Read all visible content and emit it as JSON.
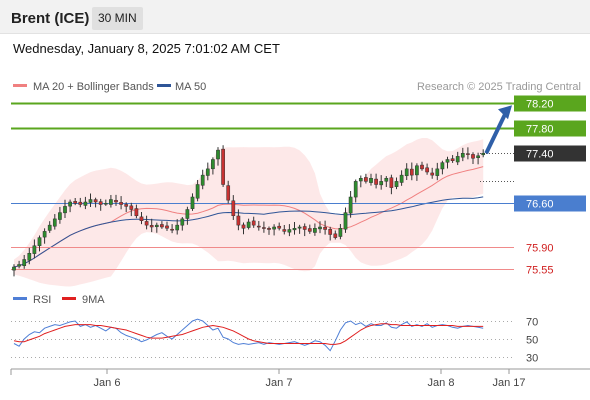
{
  "header": {
    "instrument": "Brent (ICE)",
    "timeframe": "30 MIN",
    "datetime": "Wednesday, January 8, 2025 7:01:02 AM CET"
  },
  "legend_main": [
    {
      "label": "MA 20 + Bollinger Bands",
      "color": "#f08080"
    },
    {
      "label": "MA 50",
      "color": "#2f5597"
    }
  ],
  "legend_rsi": [
    {
      "label": "RSI",
      "color": "#4f7fd6"
    },
    {
      "label": "9MA",
      "color": "#e02020"
    }
  ],
  "credit": "Research © 2025 Trading Central",
  "colors": {
    "up": "#2e8b2e",
    "down": "#c83232",
    "resistance": "#5aa61e",
    "support_blue": "#4a7ecf",
    "support_red": "#f08a8a",
    "last_price_bg": "#333333",
    "arrow": "#2f5fa8",
    "bollinger_fill": "#fde4e4"
  },
  "chart_data": [
    {
      "type": "candlestick",
      "x_ticks": [
        "Jan 6",
        "Jan 7",
        "Jan 8",
        "Jan 17"
      ],
      "levels": [
        {
          "value": 78.2,
          "label": "78.20",
          "kind": "resistance"
        },
        {
          "value": 77.8,
          "label": "77.80",
          "kind": "resistance"
        },
        {
          "value": 77.4,
          "label": "77.40",
          "kind": "last"
        },
        {
          "value": 76.6,
          "label": "76.60",
          "kind": "pivot"
        },
        {
          "value": 75.9,
          "label": "75.90",
          "kind": "support"
        },
        {
          "value": 75.55,
          "label": "75.55",
          "kind": "support"
        }
      ],
      "ylim": [
        75.5,
        78.3
      ],
      "projection": {
        "from": 77.4,
        "to": 78.2
      },
      "close": [
        75.58,
        75.62,
        75.7,
        75.8,
        75.92,
        76.05,
        76.15,
        76.25,
        76.35,
        76.45,
        76.55,
        76.62,
        76.6,
        76.58,
        76.62,
        76.66,
        76.62,
        76.58,
        76.6,
        76.66,
        76.62,
        76.58,
        76.55,
        76.5,
        76.4,
        76.32,
        76.25,
        76.22,
        76.25,
        76.22,
        76.2,
        76.18,
        76.25,
        76.35,
        76.5,
        76.7,
        76.9,
        77.05,
        77.15,
        77.3,
        77.45,
        76.9,
        76.65,
        76.4,
        76.25,
        76.2,
        76.3,
        76.25,
        76.22,
        76.2,
        76.18,
        76.22,
        76.2,
        76.15,
        76.18,
        76.2,
        76.22,
        76.18,
        76.15,
        76.2,
        76.22,
        76.18,
        76.1,
        76.05,
        76.2,
        76.45,
        76.7,
        76.95,
        77.0,
        76.95,
        77.0,
        76.9,
        76.95,
        77.0,
        76.85,
        76.95,
        77.05,
        77.15,
        77.05,
        77.2,
        77.15,
        77.1,
        77.05,
        77.15,
        77.25,
        77.3,
        77.28,
        77.35,
        77.4,
        77.38,
        77.32,
        77.36,
        77.4
      ],
      "rsi": {
        "ticks": [
          70,
          50,
          30
        ],
        "ylim": [
          20,
          80
        ],
        "rsi": [
          45,
          42,
          50,
          55,
          58,
          57,
          62,
          64,
          66,
          65,
          67,
          69,
          70,
          64,
          66,
          63,
          65,
          62,
          59,
          63,
          62,
          57,
          54,
          52,
          50,
          47,
          49,
          52,
          55,
          57,
          53,
          50,
          55,
          60,
          65,
          70,
          72,
          70,
          65,
          60,
          62,
          52,
          50,
          46,
          44,
          45,
          44,
          45,
          46,
          44,
          46,
          45,
          44,
          45,
          46,
          47,
          45,
          43,
          45,
          48,
          47,
          43,
          37,
          48,
          60,
          68,
          70,
          66,
          68,
          64,
          67,
          65,
          65,
          68,
          63,
          62,
          66,
          69,
          64,
          66,
          64,
          67,
          63,
          65,
          66,
          65,
          63,
          62,
          64,
          65,
          64,
          63,
          62
        ],
        "ma9": [
          48,
          47,
          47,
          49,
          51,
          53,
          56,
          58,
          60,
          62,
          64,
          65,
          66,
          66,
          66,
          66,
          65,
          65,
          64,
          63,
          62,
          61,
          60,
          58,
          56,
          54,
          52,
          51,
          51,
          51,
          52,
          53,
          54,
          55,
          57,
          59,
          61,
          63,
          64,
          65,
          64,
          63,
          61,
          59,
          56,
          53,
          50,
          48,
          47,
          46,
          45,
          45,
          45,
          45,
          45,
          45,
          45,
          45,
          45,
          45,
          45,
          45,
          44,
          44,
          45,
          48,
          52,
          56,
          60,
          63,
          65,
          66,
          67,
          67,
          66,
          66,
          65,
          65,
          65,
          65,
          65,
          65,
          65,
          65,
          65,
          65,
          65,
          64,
          64,
          64,
          64,
          64,
          64
        ]
      }
    }
  ]
}
